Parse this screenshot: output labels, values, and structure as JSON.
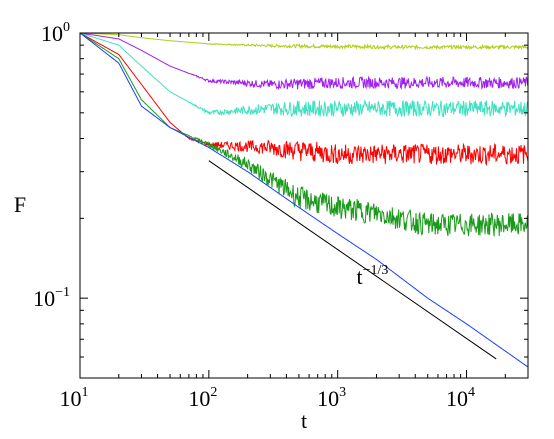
{
  "chart_data": {
    "type": "line",
    "title": "",
    "xlabel": "t",
    "ylabel": "F",
    "xscale": "log",
    "yscale": "log",
    "xlim": [
      10,
      30000
    ],
    "ylim": [
      0.05,
      1.0
    ],
    "grid": false,
    "legend": "none",
    "x_ticks": [
      {
        "base": "10",
        "exp": "1",
        "value": 10
      },
      {
        "base": "10",
        "exp": "2",
        "value": 100
      },
      {
        "base": "10",
        "exp": "3",
        "value": 1000
      },
      {
        "base": "10",
        "exp": "4",
        "value": 10000
      }
    ],
    "y_ticks": [
      {
        "base": "10",
        "exp": "0",
        "value": 1.0
      },
      {
        "base": "10",
        "exp": "−1",
        "value": 0.1
      }
    ],
    "series": [
      {
        "color": "#b5cc1a",
        "x": [
          10,
          20,
          30,
          50,
          100,
          300,
          1000,
          3000,
          10000,
          30000
        ],
        "y": [
          1.0,
          0.985,
          0.96,
          0.935,
          0.91,
          0.895,
          0.89,
          0.885,
          0.885,
          0.885
        ],
        "noise": 0.015
      },
      {
        "color": "#a020f0",
        "x": [
          10,
          20,
          30,
          50,
          100,
          300,
          1000,
          3000,
          10000,
          30000
        ],
        "y": [
          1.0,
          0.95,
          0.86,
          0.75,
          0.66,
          0.64,
          0.65,
          0.65,
          0.65,
          0.65
        ],
        "noise": 0.05
      },
      {
        "color": "#40e0c0",
        "x": [
          10,
          20,
          30,
          50,
          100,
          300,
          1000,
          3000,
          10000,
          30000
        ],
        "y": [
          1.0,
          0.9,
          0.75,
          0.6,
          0.5,
          0.52,
          0.52,
          0.52,
          0.52,
          0.52
        ],
        "noise": 0.07
      },
      {
        "color": "#ff0000",
        "x": [
          10,
          20,
          30,
          50,
          70,
          100,
          300,
          1000,
          3000,
          10000,
          30000
        ],
        "y": [
          1.0,
          0.83,
          0.64,
          0.46,
          0.4,
          0.38,
          0.37,
          0.35,
          0.35,
          0.35,
          0.35
        ],
        "noise": 0.09
      },
      {
        "color": "#1a9a1a",
        "x": [
          10,
          20,
          30,
          50,
          100,
          200,
          500,
          1000,
          2000,
          5000,
          10000,
          30000
        ],
        "y": [
          1.0,
          0.8,
          0.56,
          0.44,
          0.38,
          0.32,
          0.24,
          0.22,
          0.21,
          0.19,
          0.19,
          0.19
        ],
        "noise": 0.1
      },
      {
        "color": "#1a3cff",
        "x": [
          10,
          20,
          30,
          50,
          100,
          200,
          500,
          1000,
          2000,
          5000,
          10000,
          30000
        ],
        "y": [
          1.0,
          0.77,
          0.53,
          0.44,
          0.37,
          0.3,
          0.22,
          0.175,
          0.14,
          0.1,
          0.08,
          0.055
        ],
        "noise": 0
      }
    ],
    "annotations": [
      {
        "base": "t",
        "exp": "−1/3",
        "x": 2000,
        "y": 0.115
      },
      {
        "kind": "reference-line",
        "color": "#000000",
        "x": [
          100,
          17000
        ],
        "y": [
          0.33,
          0.059
        ]
      }
    ]
  }
}
